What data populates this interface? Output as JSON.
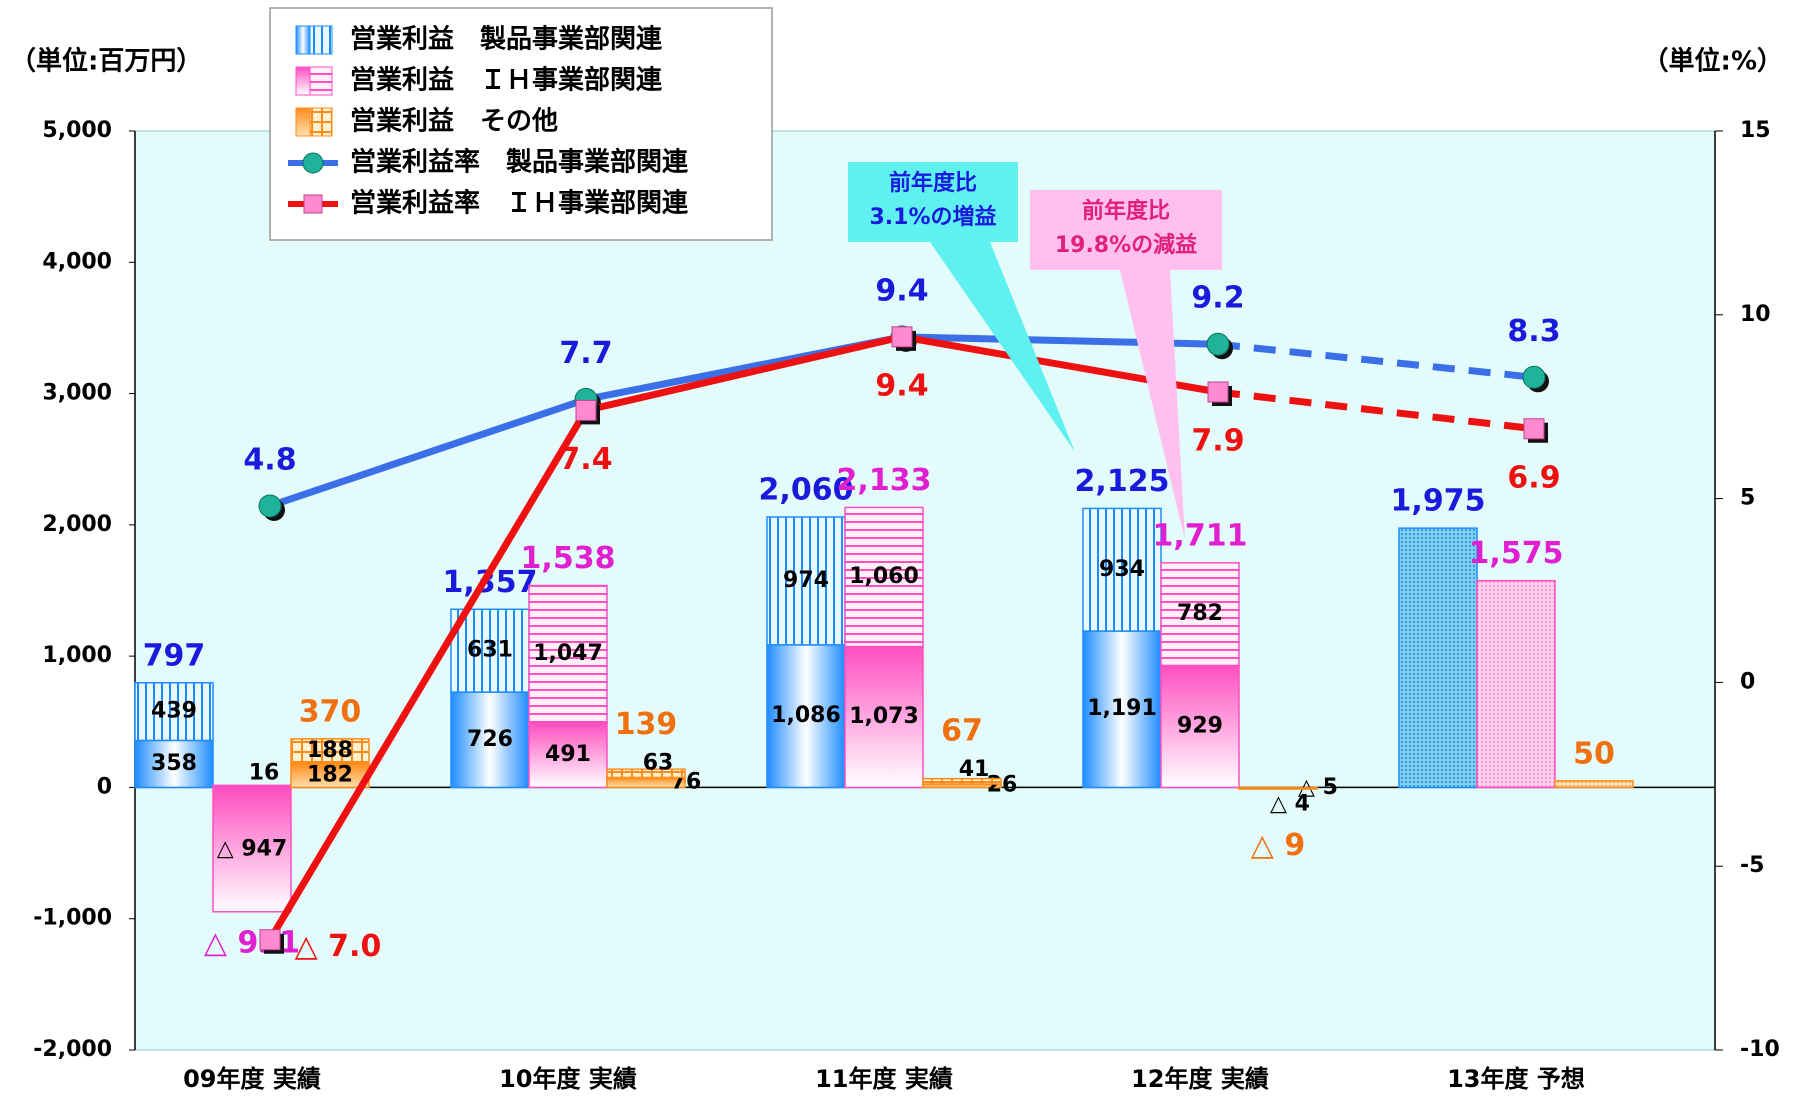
{
  "chart_data": {
    "type": "bar_line",
    "unit_left": "（単位:百万円）",
    "unit_right": "（単位:%）",
    "categories": [
      "09年度 実績",
      "10年度 実績",
      "11年度 実績",
      "12年度 実績",
      "13年度 予想"
    ],
    "ylim": [
      -2000,
      5000
    ],
    "yticks": [
      {
        "value": 5000,
        "label": "5,000"
      },
      {
        "value": 4000,
        "label": "4,000"
      },
      {
        "value": 3000,
        "label": "3,000"
      },
      {
        "value": 2000,
        "label": "2,000"
      },
      {
        "value": 1000,
        "label": "1,000"
      },
      0,
      {
        "value": -1000,
        "label": "-1,000"
      },
      {
        "value": -2000,
        "label": "-2,000"
      }
    ],
    "y2lim": [
      -10,
      15
    ],
    "y2ticks": [
      15,
      10,
      5,
      0,
      -5,
      -10
    ],
    "plot_background": "#e3fbfb",
    "bar_series": [
      {
        "name": "営業利益　製品事業部関連",
        "color": "#1e8cff",
        "label_color": "#1a1adc",
        "segments": [
          {
            "values": [
              358,
              726,
              1086,
              1191,
              null
            ],
            "value_labels": [
              "358",
              "726",
              "1,086",
              "1,191",
              null
            ]
          },
          {
            "values": [
              439,
              631,
              974,
              934,
              null
            ],
            "value_labels": [
              "439",
              "631",
              "974",
              "934",
              null
            ]
          }
        ],
        "totals": {
          "values": [
            797,
            1357,
            2060,
            2125,
            1975
          ],
          "value_labels": [
            "797",
            "1,357",
            "2,060",
            "2,125",
            "1,975"
          ]
        }
      },
      {
        "name": "営業利益　ＩＨ事業部関連",
        "color": "#ff4fc0",
        "label_color": "#e020d0",
        "segments": [
          {
            "values": [
              -947,
              491,
              1073,
              929,
              null
            ],
            "value_labels": [
              "△ 947",
              "491",
              "1,073",
              "929",
              null
            ]
          },
          {
            "values": [
              16,
              1047,
              1060,
              782,
              null
            ],
            "value_labels": [
              "16",
              "1,047",
              "1,060",
              "782",
              null
            ]
          }
        ],
        "totals": {
          "values": [
            -931,
            1538,
            2133,
            1711,
            1575
          ],
          "value_labels": [
            "△ 931",
            "1,538",
            "2,133",
            "1,711",
            "1,575"
          ]
        }
      },
      {
        "name": "営業利益　その他",
        "color": "#ff8c1a",
        "label_color": "#f07010",
        "segments": [
          {
            "values": [
              182,
              76,
              26,
              -5,
              null
            ],
            "value_labels": [
              "182",
              "76",
              "26",
              "△ 5",
              null
            ]
          },
          {
            "values": [
              188,
              63,
              41,
              -4,
              null
            ],
            "value_labels": [
              "188",
              "63",
              "41",
              "△ 4",
              null
            ]
          }
        ],
        "totals": {
          "values": [
            370,
            139,
            67,
            -9,
            50
          ],
          "value_labels": [
            "370",
            "139",
            "67",
            "△ 9",
            "50"
          ]
        }
      }
    ],
    "series": [
      {
        "name": "営業利益率　製品事業部関連",
        "color": "#3a6fe8",
        "marker": "circle",
        "marker_color": "#1fb39a",
        "label_color": "#1a1adc",
        "axis": "y2",
        "values": [
          4.8,
          7.7,
          9.4,
          9.2,
          8.3
        ]
      },
      {
        "name": "営業利益率　ＩＨ事業部関連",
        "color": "#ee1111",
        "marker": "square",
        "marker_color": "#ff8ad0",
        "label_color": "#ee1111",
        "axis": "y2",
        "values": [
          -7.0,
          7.4,
          9.4,
          7.9,
          6.9
        ],
        "value_labels": [
          "△ 7.0",
          "7.4",
          "9.4",
          "7.9",
          "6.9"
        ]
      }
    ],
    "forecast_dashed": true,
    "annotations": [
      {
        "lines": [
          "前年度比",
          "3.1%の増益"
        ],
        "color": "#5ff0f0",
        "text_color": "#1a1adc"
      },
      {
        "lines": [
          "前年度比",
          "19.8%の減益"
        ],
        "color": "#ffc0f0",
        "text_color": "#e0207a"
      }
    ]
  }
}
